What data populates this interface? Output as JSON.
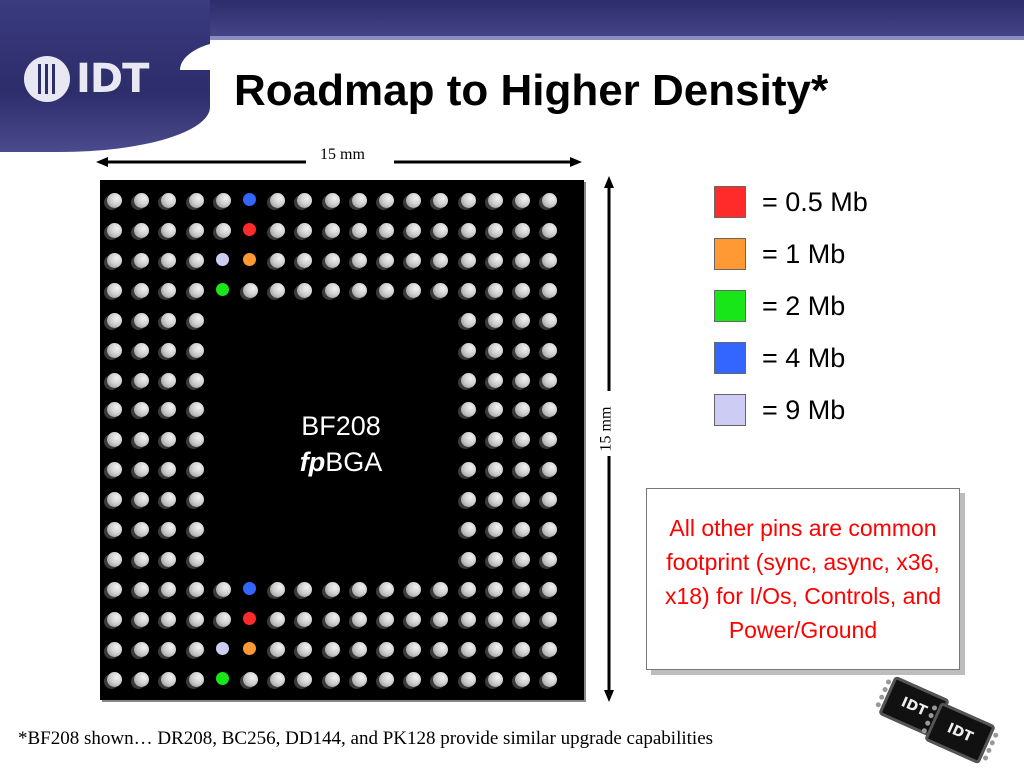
{
  "header": {
    "logo_text": "IDT",
    "title": "Roadmap to Higher Density*"
  },
  "dimensions": {
    "width_label": "15 mm",
    "height_label": "15 mm"
  },
  "chip": {
    "name": "BF208",
    "package_prefix": "fp",
    "package_suffix": "BGA"
  },
  "legend": [
    {
      "label": "= 0.5 Mb",
      "color": "#ff2a2a"
    },
    {
      "label": "= 1 Mb",
      "color": "#ff9933"
    },
    {
      "label": "= 2 Mb",
      "color": "#19e619"
    },
    {
      "label": "= 4 Mb",
      "color": "#3366ff"
    },
    {
      "label": "= 9 Mb",
      "color": "#ccccf5"
    }
  ],
  "highlighted_pins": [
    {
      "row": 0,
      "col": 5,
      "density": "= 4 Mb"
    },
    {
      "row": 1,
      "col": 5,
      "density": "= 0.5 Mb"
    },
    {
      "row": 2,
      "col": 4,
      "density": "= 9 Mb"
    },
    {
      "row": 2,
      "col": 5,
      "density": "= 1 Mb"
    },
    {
      "row": 3,
      "col": 4,
      "density": "= 2 Mb"
    },
    {
      "row": 13,
      "col": 5,
      "density": "= 4 Mb"
    },
    {
      "row": 14,
      "col": 5,
      "density": "= 0.5 Mb"
    },
    {
      "row": 15,
      "col": 4,
      "density": "= 9 Mb"
    },
    {
      "row": 15,
      "col": 5,
      "density": "= 1 Mb"
    },
    {
      "row": 16,
      "col": 4,
      "density": "= 2 Mb"
    }
  ],
  "note": "All other pins are common footprint (sync, async, x36, x18) for I/Os, Controls, and Power/Ground",
  "footnote": "*BF208 shown… DR208, BC256, DD144, and PK128 provide similar upgrade capabilities",
  "mini_chip_label": "IDT"
}
